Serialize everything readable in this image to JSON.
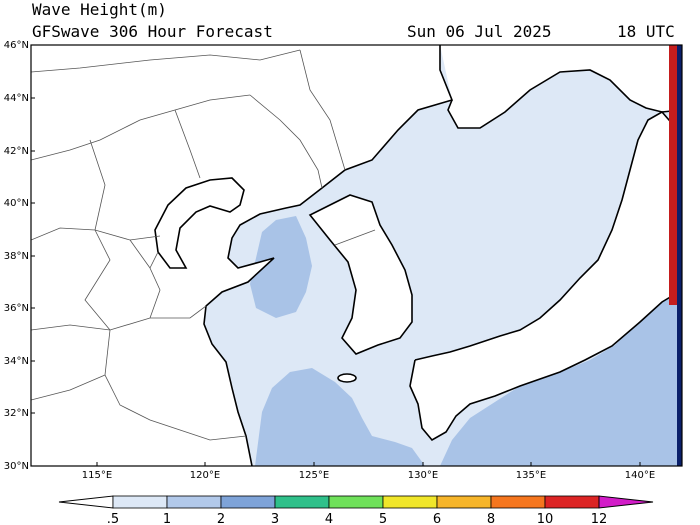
{
  "header": {
    "title": "Wave Height(m)",
    "subtitle": "GFSwave 306 Hour Forecast",
    "date": "Sun 06 Jul 2025",
    "time": "18 UTC"
  },
  "axes": {
    "lat_labels": [
      "46°N",
      "44°N",
      "42°N",
      "40°N",
      "38°N",
      "36°N",
      "34°N",
      "32°N",
      "30°N"
    ],
    "lon_labels": [
      "115°E",
      "120°E",
      "125°E",
      "130°E",
      "135°E",
      "140°E"
    ]
  },
  "colorbar": {
    "labels": [
      ".5",
      "1",
      "2",
      "3",
      "4",
      "5",
      "6",
      "8",
      "10",
      "12"
    ],
    "colors": [
      "#dde8f6",
      "#b2c9ea",
      "#7ea3d8",
      "#2fc08a",
      "#6fe15a",
      "#f0e62a",
      "#f6b52a",
      "#f5761e",
      "#dc2424",
      "#a80d0d",
      "#d21cc8"
    ]
  },
  "map_colors": {
    "wave_light": "#dde8f6",
    "wave_mid": "#a9c3e7",
    "wave_high_edge": "#c51d1d",
    "edge_dark": "#0a1f6a"
  },
  "chart_data": {
    "type": "heatmap",
    "variable": "Wave Height(m)",
    "lon_range": [
      112,
      142
    ],
    "lat_range": [
      30,
      46
    ],
    "levels": [
      0.5,
      1,
      2,
      3,
      4,
      5,
      6,
      8,
      10,
      12
    ]
  }
}
